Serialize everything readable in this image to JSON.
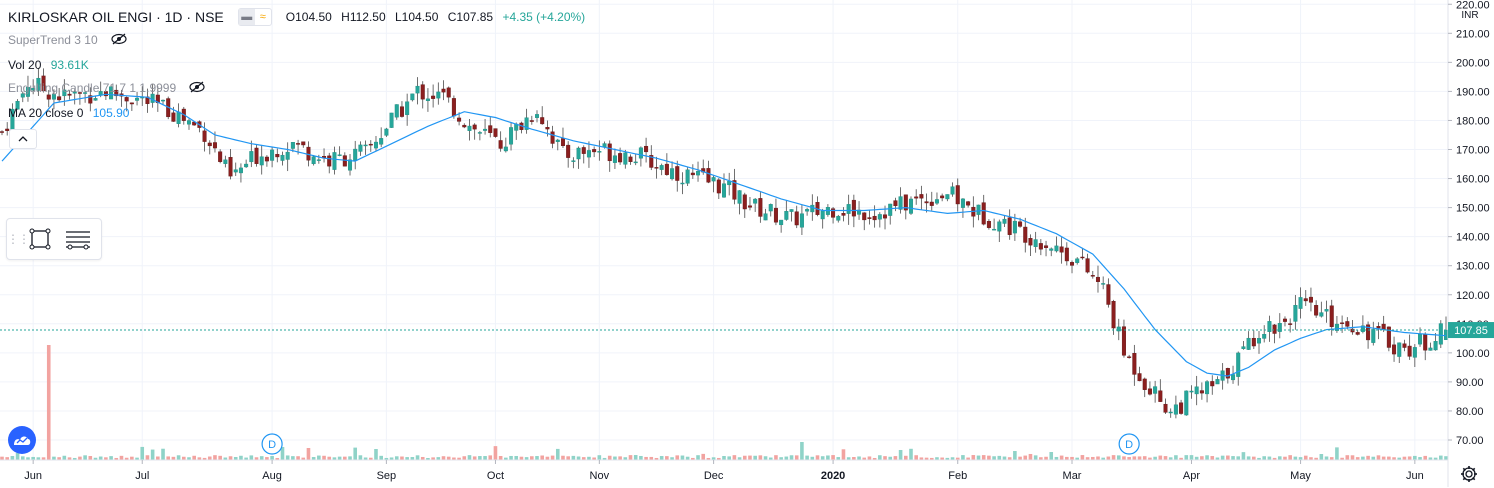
{
  "header": {
    "symbol": "KIRLOSKAR OIL ENGI · 1D · NSE",
    "open_label": "O",
    "open": "104.50",
    "high_label": "H",
    "high": "112.50",
    "low_label": "L",
    "low": "104.50",
    "close_label": "C",
    "close": "107.85",
    "change": "+4.35 (+4.20%)",
    "toggle_icons": [
      "bar-style-icon",
      "wave-icon"
    ]
  },
  "studies": [
    {
      "name": "SuperTrend 3 10",
      "value": "",
      "value_color": "",
      "icon": "eye-crossed-icon"
    },
    {
      "name": "Vol 20",
      "value": "93.61K",
      "value_color": "#26a69a",
      "icon": ""
    },
    {
      "name": "Engulfing Candle 71.7 1 1.9999",
      "value": "",
      "value_color": "",
      "icon": "eye-crossed-icon"
    },
    {
      "name": "MA 20 close 0",
      "value": "105.90",
      "value_color": "#2196f3",
      "icon": ""
    }
  ],
  "toolbar": {
    "collapse_icon": "chevron-up-icon",
    "tools": [
      "rectangle-icon",
      "settings-lines-icon"
    ]
  },
  "colors": {
    "up": "#26a69a",
    "down": "#8b1f1f",
    "ma": "#2196f3",
    "grid": "#f0f3fa",
    "price_tag": "#26a69a",
    "vol_up": "#8fd3c8",
    "vol_down": "#f2a3a0"
  },
  "chart_data": {
    "type": "candlestick",
    "price_axis": {
      "currency": "INR",
      "ticks": [
        70,
        80,
        90,
        100,
        110,
        120,
        130,
        140,
        150,
        160,
        170,
        180,
        190,
        200,
        210,
        220
      ],
      "range": [
        63,
        221
      ],
      "last_price": "107.85"
    },
    "time_axis": {
      "labels": [
        "Jun",
        "Jul",
        "Aug",
        "Sep",
        "Oct",
        "Nov",
        "Dec",
        "2020",
        "Feb",
        "Mar",
        "Apr",
        "May",
        "Jun"
      ]
    },
    "dividend_markers": [
      {
        "label": "D",
        "month": "Aug"
      },
      {
        "label": "D",
        "month": "Mar"
      }
    ],
    "close_anchors": [
      [
        0,
        176
      ],
      [
        5,
        193
      ],
      [
        12,
        188
      ],
      [
        20,
        190
      ],
      [
        27,
        187
      ],
      [
        33,
        183
      ],
      [
        39,
        176
      ],
      [
        44,
        160
      ],
      [
        49,
        168
      ],
      [
        56,
        172
      ],
      [
        63,
        166
      ],
      [
        70,
        169
      ],
      [
        75,
        180
      ],
      [
        80,
        190
      ],
      [
        85,
        188
      ],
      [
        90,
        178
      ],
      [
        96,
        172
      ],
      [
        103,
        184
      ],
      [
        108,
        168
      ],
      [
        115,
        170
      ],
      [
        122,
        168
      ],
      [
        130,
        162
      ],
      [
        138,
        158
      ],
      [
        145,
        150
      ],
      [
        152,
        146
      ],
      [
        160,
        150
      ],
      [
        168,
        148
      ],
      [
        175,
        152
      ],
      [
        182,
        155
      ],
      [
        188,
        148
      ],
      [
        195,
        143
      ],
      [
        202,
        137
      ],
      [
        207,
        132
      ],
      [
        212,
        122
      ],
      [
        216,
        100
      ],
      [
        221,
        88
      ],
      [
        225,
        80
      ],
      [
        230,
        86
      ],
      [
        234,
        89
      ],
      [
        238,
        98
      ],
      [
        242,
        108
      ],
      [
        246,
        110
      ],
      [
        250,
        116
      ],
      [
        255,
        112
      ],
      [
        260,
        110
      ],
      [
        265,
        106
      ],
      [
        270,
        101
      ],
      [
        274,
        104
      ],
      [
        278,
        107.85
      ]
    ],
    "ma20_anchors": [
      [
        0,
        166
      ],
      [
        10,
        186
      ],
      [
        20,
        189
      ],
      [
        28,
        188
      ],
      [
        35,
        182
      ],
      [
        41,
        175
      ],
      [
        48,
        172
      ],
      [
        55,
        170
      ],
      [
        62,
        167
      ],
      [
        68,
        166
      ],
      [
        75,
        172
      ],
      [
        82,
        178
      ],
      [
        89,
        183
      ],
      [
        95,
        181
      ],
      [
        102,
        177
      ],
      [
        110,
        173
      ],
      [
        118,
        170
      ],
      [
        126,
        167
      ],
      [
        134,
        163
      ],
      [
        142,
        158
      ],
      [
        150,
        153
      ],
      [
        158,
        149
      ],
      [
        166,
        149
      ],
      [
        174,
        150
      ],
      [
        182,
        148
      ],
      [
        189,
        149
      ],
      [
        196,
        146
      ],
      [
        203,
        141
      ],
      [
        210,
        134
      ],
      [
        216,
        122
      ],
      [
        222,
        108
      ],
      [
        228,
        97
      ],
      [
        232,
        93
      ],
      [
        236,
        92
      ],
      [
        240,
        95
      ],
      [
        245,
        101
      ],
      [
        250,
        105
      ],
      [
        255,
        108
      ],
      [
        262,
        109
      ],
      [
        270,
        107
      ],
      [
        278,
        105.9
      ]
    ],
    "volume_spikes": [
      {
        "bar": 9,
        "value": "1.08M"
      }
    ],
    "volume_last": "93.61K"
  }
}
